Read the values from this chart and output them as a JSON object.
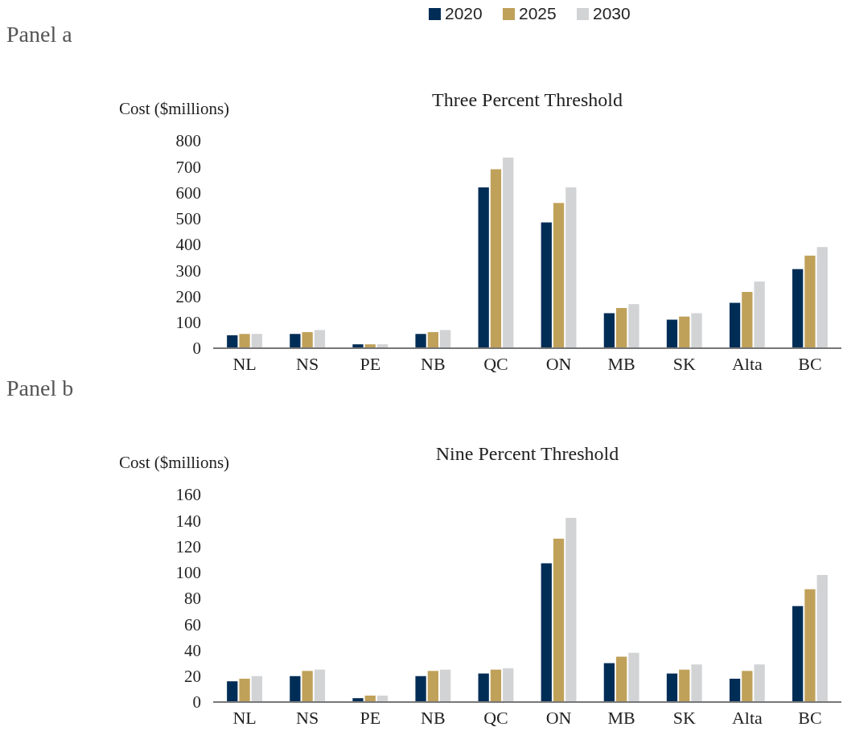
{
  "chart_data": [
    {
      "type": "bar",
      "title": "Three Percent Threshold",
      "ylabel": "Cost ($millions)",
      "annotations": [
        "Panel a"
      ],
      "categories": [
        "NL",
        "NS",
        "PE",
        "NB",
        "QC",
        "ON",
        "MB",
        "SK",
        "Alta",
        "BC"
      ],
      "series": [
        {
          "name": "2020",
          "color": "#002d56",
          "values": [
            50,
            55,
            15,
            55,
            620,
            485,
            135,
            110,
            175,
            305
          ]
        },
        {
          "name": "2025",
          "color": "#c0a15a",
          "values": [
            55,
            62,
            15,
            62,
            690,
            560,
            155,
            122,
            217,
            357
          ]
        },
        {
          "name": "2030",
          "color": "#d2d3d5",
          "values": [
            55,
            70,
            15,
            70,
            735,
            620,
            170,
            135,
            257,
            390
          ]
        }
      ],
      "ylim": [
        0,
        800
      ],
      "yticks": [
        0,
        100,
        200,
        300,
        400,
        500,
        600,
        700,
        800
      ],
      "grid": false,
      "legend": "top"
    },
    {
      "type": "bar",
      "title": "Nine Percent Threshold",
      "ylabel": "Cost ($millions)",
      "annotations": [
        "Panel b"
      ],
      "categories": [
        "NL",
        "NS",
        "PE",
        "NB",
        "QC",
        "ON",
        "MB",
        "SK",
        "Alta",
        "BC"
      ],
      "series": [
        {
          "color": "#002d56",
          "values": [
            16,
            20,
            3,
            20,
            22,
            107,
            30,
            22,
            18,
            74
          ]
        },
        {
          "color": "#c0a15a",
          "values": [
            18,
            24,
            5,
            24,
            25,
            126,
            35,
            25,
            24,
            87
          ]
        },
        {
          "color": "#d2d3d5",
          "values": [
            20,
            25,
            5,
            25,
            26,
            142,
            38,
            29,
            29,
            98
          ]
        }
      ],
      "ylim": [
        0,
        160
      ],
      "yticks": [
        0,
        20,
        40,
        60,
        80,
        100,
        120,
        140,
        160
      ],
      "grid": false
    }
  ]
}
